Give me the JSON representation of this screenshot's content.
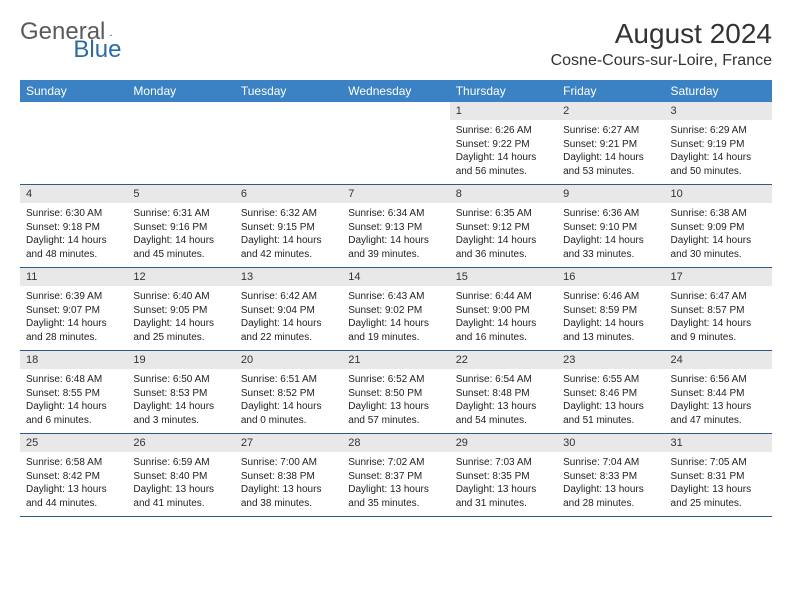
{
  "logo": {
    "text1": "General",
    "text2": "Blue",
    "color1": "#5a5a5a",
    "color2": "#2d6ca2"
  },
  "title": "August 2024",
  "location": "Cosne-Cours-sur-Loire, France",
  "header_bg": "#3b82c4",
  "daynum_bg": "#e8e8e8",
  "border_color": "#2d5a8a",
  "columns": [
    "Sunday",
    "Monday",
    "Tuesday",
    "Wednesday",
    "Thursday",
    "Friday",
    "Saturday"
  ],
  "weeks": [
    {
      "nums": [
        "",
        "",
        "",
        "",
        "1",
        "2",
        "3"
      ],
      "cells": [
        null,
        null,
        null,
        null,
        {
          "sunrise": "6:26 AM",
          "sunset": "9:22 PM",
          "daylight": "14 hours and 56 minutes."
        },
        {
          "sunrise": "6:27 AM",
          "sunset": "9:21 PM",
          "daylight": "14 hours and 53 minutes."
        },
        {
          "sunrise": "6:29 AM",
          "sunset": "9:19 PM",
          "daylight": "14 hours and 50 minutes."
        }
      ]
    },
    {
      "nums": [
        "4",
        "5",
        "6",
        "7",
        "8",
        "9",
        "10"
      ],
      "cells": [
        {
          "sunrise": "6:30 AM",
          "sunset": "9:18 PM",
          "daylight": "14 hours and 48 minutes."
        },
        {
          "sunrise": "6:31 AM",
          "sunset": "9:16 PM",
          "daylight": "14 hours and 45 minutes."
        },
        {
          "sunrise": "6:32 AM",
          "sunset": "9:15 PM",
          "daylight": "14 hours and 42 minutes."
        },
        {
          "sunrise": "6:34 AM",
          "sunset": "9:13 PM",
          "daylight": "14 hours and 39 minutes."
        },
        {
          "sunrise": "6:35 AM",
          "sunset": "9:12 PM",
          "daylight": "14 hours and 36 minutes."
        },
        {
          "sunrise": "6:36 AM",
          "sunset": "9:10 PM",
          "daylight": "14 hours and 33 minutes."
        },
        {
          "sunrise": "6:38 AM",
          "sunset": "9:09 PM",
          "daylight": "14 hours and 30 minutes."
        }
      ]
    },
    {
      "nums": [
        "11",
        "12",
        "13",
        "14",
        "15",
        "16",
        "17"
      ],
      "cells": [
        {
          "sunrise": "6:39 AM",
          "sunset": "9:07 PM",
          "daylight": "14 hours and 28 minutes."
        },
        {
          "sunrise": "6:40 AM",
          "sunset": "9:05 PM",
          "daylight": "14 hours and 25 minutes."
        },
        {
          "sunrise": "6:42 AM",
          "sunset": "9:04 PM",
          "daylight": "14 hours and 22 minutes."
        },
        {
          "sunrise": "6:43 AM",
          "sunset": "9:02 PM",
          "daylight": "14 hours and 19 minutes."
        },
        {
          "sunrise": "6:44 AM",
          "sunset": "9:00 PM",
          "daylight": "14 hours and 16 minutes."
        },
        {
          "sunrise": "6:46 AM",
          "sunset": "8:59 PM",
          "daylight": "14 hours and 13 minutes."
        },
        {
          "sunrise": "6:47 AM",
          "sunset": "8:57 PM",
          "daylight": "14 hours and 9 minutes."
        }
      ]
    },
    {
      "nums": [
        "18",
        "19",
        "20",
        "21",
        "22",
        "23",
        "24"
      ],
      "cells": [
        {
          "sunrise": "6:48 AM",
          "sunset": "8:55 PM",
          "daylight": "14 hours and 6 minutes."
        },
        {
          "sunrise": "6:50 AM",
          "sunset": "8:53 PM",
          "daylight": "14 hours and 3 minutes."
        },
        {
          "sunrise": "6:51 AM",
          "sunset": "8:52 PM",
          "daylight": "14 hours and 0 minutes."
        },
        {
          "sunrise": "6:52 AM",
          "sunset": "8:50 PM",
          "daylight": "13 hours and 57 minutes."
        },
        {
          "sunrise": "6:54 AM",
          "sunset": "8:48 PM",
          "daylight": "13 hours and 54 minutes."
        },
        {
          "sunrise": "6:55 AM",
          "sunset": "8:46 PM",
          "daylight": "13 hours and 51 minutes."
        },
        {
          "sunrise": "6:56 AM",
          "sunset": "8:44 PM",
          "daylight": "13 hours and 47 minutes."
        }
      ]
    },
    {
      "nums": [
        "25",
        "26",
        "27",
        "28",
        "29",
        "30",
        "31"
      ],
      "cells": [
        {
          "sunrise": "6:58 AM",
          "sunset": "8:42 PM",
          "daylight": "13 hours and 44 minutes."
        },
        {
          "sunrise": "6:59 AM",
          "sunset": "8:40 PM",
          "daylight": "13 hours and 41 minutes."
        },
        {
          "sunrise": "7:00 AM",
          "sunset": "8:38 PM",
          "daylight": "13 hours and 38 minutes."
        },
        {
          "sunrise": "7:02 AM",
          "sunset": "8:37 PM",
          "daylight": "13 hours and 35 minutes."
        },
        {
          "sunrise": "7:03 AM",
          "sunset": "8:35 PM",
          "daylight": "13 hours and 31 minutes."
        },
        {
          "sunrise": "7:04 AM",
          "sunset": "8:33 PM",
          "daylight": "13 hours and 28 minutes."
        },
        {
          "sunrise": "7:05 AM",
          "sunset": "8:31 PM",
          "daylight": "13 hours and 25 minutes."
        }
      ]
    }
  ]
}
